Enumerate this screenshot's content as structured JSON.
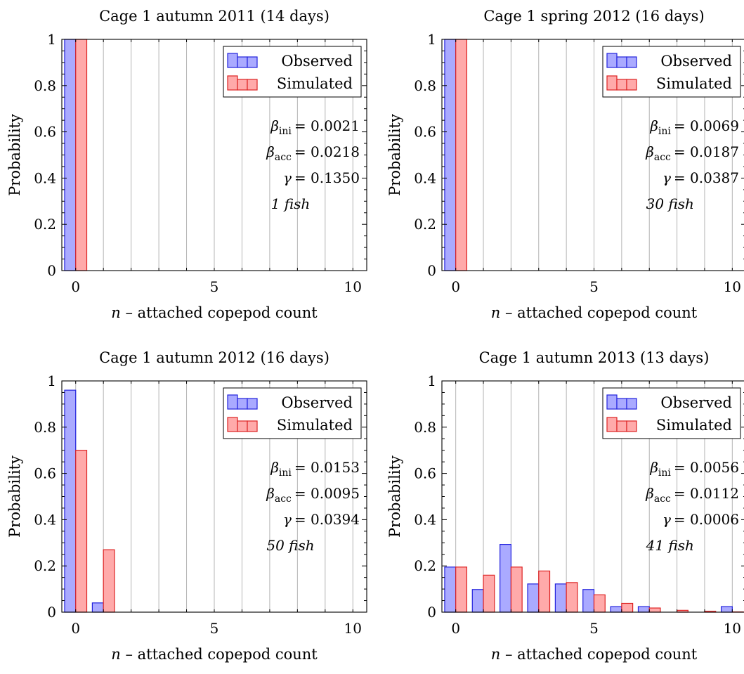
{
  "figure": {
    "grid": "2x2",
    "grid_lines": "vertical"
  },
  "colors": {
    "observed_fill": "#aaaaff",
    "observed_stroke": "#2222dd",
    "simulated_fill": "#ffaaaa",
    "simulated_stroke": "#dd2222",
    "grid": "#b4b4b4"
  },
  "chart_data": [
    {
      "type": "bar",
      "title": "Cage 1 autumn 2011 (14 days)",
      "xlabel": "n – attached copepod count",
      "ylabel": "Probability",
      "xlim": [
        -0.5,
        10.5
      ],
      "ylim": [
        0,
        1
      ],
      "xticks": [
        0,
        5,
        10
      ],
      "yticks": [
        0,
        0.2,
        0.4,
        0.6,
        0.8,
        1
      ],
      "legend_position": "top-right",
      "x": [
        0,
        1,
        2,
        3,
        4,
        5,
        6,
        7,
        8,
        9,
        10
      ],
      "series": [
        {
          "name": "Observed",
          "values": [
            1,
            0,
            0,
            0,
            0,
            0,
            0,
            0,
            0,
            0,
            0
          ]
        },
        {
          "name": "Simulated",
          "values": [
            1,
            0,
            0,
            0,
            0,
            0,
            0,
            0,
            0,
            0,
            0
          ]
        }
      ],
      "annotations": [
        {
          "lhs": "β",
          "sub": "ini",
          "rhs": "= 0.0021"
        },
        {
          "lhs": "β",
          "sub": "acc",
          "rhs": "= 0.0218"
        },
        {
          "lhs": "γ",
          "sub": "",
          "rhs": "= 0.1350"
        },
        {
          "lhs": "",
          "sub": "",
          "rhs": "1 fish"
        }
      ]
    },
    {
      "type": "bar",
      "title": "Cage 1 spring 2012 (16 days)",
      "xlabel": "n – attached copepod count",
      "ylabel": "Probability",
      "xlim": [
        -0.5,
        10.5
      ],
      "ylim": [
        0,
        1
      ],
      "xticks": [
        0,
        5,
        10
      ],
      "yticks": [
        0,
        0.2,
        0.4,
        0.6,
        0.8,
        1
      ],
      "legend_position": "top-right",
      "x": [
        0,
        1,
        2,
        3,
        4,
        5,
        6,
        7,
        8,
        9,
        10
      ],
      "series": [
        {
          "name": "Observed",
          "values": [
            1,
            0,
            0,
            0,
            0,
            0,
            0,
            0,
            0,
            0,
            0
          ]
        },
        {
          "name": "Simulated",
          "values": [
            1,
            0,
            0,
            0,
            0,
            0,
            0,
            0,
            0,
            0,
            0
          ]
        }
      ],
      "annotations": [
        {
          "lhs": "β",
          "sub": "ini",
          "rhs": "= 0.0069"
        },
        {
          "lhs": "β",
          "sub": "acc",
          "rhs": "= 0.0187"
        },
        {
          "lhs": "γ",
          "sub": "",
          "rhs": "= 0.0387"
        },
        {
          "lhs": "",
          "sub": "",
          "rhs": "30 fish"
        }
      ]
    },
    {
      "type": "bar",
      "title": "Cage 1 autumn 2012 (16 days)",
      "xlabel": "n – attached copepod count",
      "ylabel": "Probability",
      "xlim": [
        -0.5,
        10.5
      ],
      "ylim": [
        0,
        1
      ],
      "xticks": [
        0,
        5,
        10
      ],
      "yticks": [
        0,
        0.2,
        0.4,
        0.6,
        0.8,
        1
      ],
      "legend_position": "top-right",
      "x": [
        0,
        1,
        2,
        3,
        4,
        5,
        6,
        7,
        8,
        9,
        10
      ],
      "series": [
        {
          "name": "Observed",
          "values": [
            0.96,
            0.04,
            0,
            0,
            0,
            0,
            0,
            0,
            0,
            0,
            0
          ]
        },
        {
          "name": "Simulated",
          "values": [
            0.7,
            0.27,
            0,
            0,
            0,
            0,
            0,
            0,
            0,
            0,
            0
          ]
        }
      ],
      "annotations": [
        {
          "lhs": "β",
          "sub": "ini",
          "rhs": "= 0.0153"
        },
        {
          "lhs": "β",
          "sub": "acc",
          "rhs": "= 0.0095"
        },
        {
          "lhs": "γ",
          "sub": "",
          "rhs": "= 0.0394"
        },
        {
          "lhs": "",
          "sub": "",
          "rhs": "50 fish"
        }
      ]
    },
    {
      "type": "bar",
      "title": "Cage 1 autumn 2013 (13 days)",
      "xlabel": "n – attached copepod count",
      "ylabel": "Probability",
      "xlim": [
        -0.5,
        10.5
      ],
      "ylim": [
        0,
        1
      ],
      "xticks": [
        0,
        5,
        10
      ],
      "yticks": [
        0,
        0.2,
        0.4,
        0.6,
        0.8,
        1
      ],
      "legend_position": "top-right",
      "x": [
        0,
        1,
        2,
        3,
        4,
        5,
        6,
        7,
        8,
        9,
        10
      ],
      "series": [
        {
          "name": "Observed",
          "values": [
            0.195,
            0.098,
            0.293,
            0.122,
            0.122,
            0.098,
            0.024,
            0.024,
            0,
            0,
            0.024
          ]
        },
        {
          "name": "Simulated",
          "values": [
            0.195,
            0.16,
            0.195,
            0.178,
            0.128,
            0.075,
            0.038,
            0.018,
            0.008,
            0.004,
            0.001
          ]
        }
      ],
      "annotations": [
        {
          "lhs": "β",
          "sub": "ini",
          "rhs": "= 0.0056"
        },
        {
          "lhs": "β",
          "sub": "acc",
          "rhs": "= 0.0112"
        },
        {
          "lhs": "γ",
          "sub": "",
          "rhs": "= 0.0006"
        },
        {
          "lhs": "",
          "sub": "",
          "rhs": "41 fish"
        }
      ]
    }
  ]
}
